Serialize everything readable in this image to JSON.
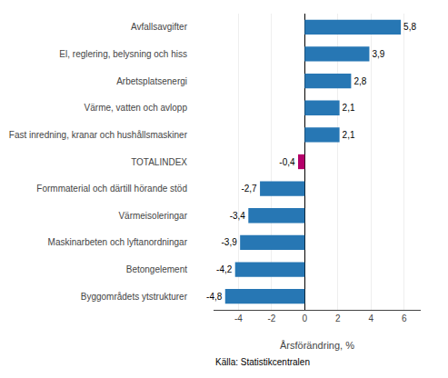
{
  "chart_data": {
    "type": "bar",
    "orientation": "horizontal",
    "categories": [
      "Byggområdets ytstrukturer",
      "Betongelement",
      "Maskinarbeten och lyftanordningar",
      "Värmeisoleringar",
      "Formmaterial och därtill hörande stöd",
      "TOTALINDEX",
      "Fast inredning, kranar och hushållsmaskiner",
      "Värme, vatten och avlopp",
      "Arbetsplatsenergi",
      "El, reglering, belysning och hiss",
      "Avfallsavgifter"
    ],
    "values": [
      -4.8,
      -4.2,
      -3.9,
      -3.4,
      -2.7,
      -0.4,
      2.1,
      2.1,
      2.8,
      3.9,
      5.8
    ],
    "value_labels": [
      "-4,8",
      "-4,2",
      "-3,9",
      "-3,4",
      "-2,7",
      "-0,4",
      "2,1",
      "2,1",
      "2,8",
      "3,9",
      "5,8"
    ],
    "colors": [
      "#2777b4",
      "#2777b4",
      "#2777b4",
      "#2777b4",
      "#2777b4",
      "#b5006a",
      "#2777b4",
      "#2777b4",
      "#2777b4",
      "#2777b4",
      "#2777b4"
    ],
    "data_labels": true,
    "xlabel": "Årsförändring, %",
    "xlim": [
      -5.5,
      7.0
    ],
    "xticks": [
      -4,
      -2,
      0,
      2,
      4,
      6
    ],
    "grid": true,
    "annotations": [
      "Källa: Statistikcentralen"
    ]
  }
}
